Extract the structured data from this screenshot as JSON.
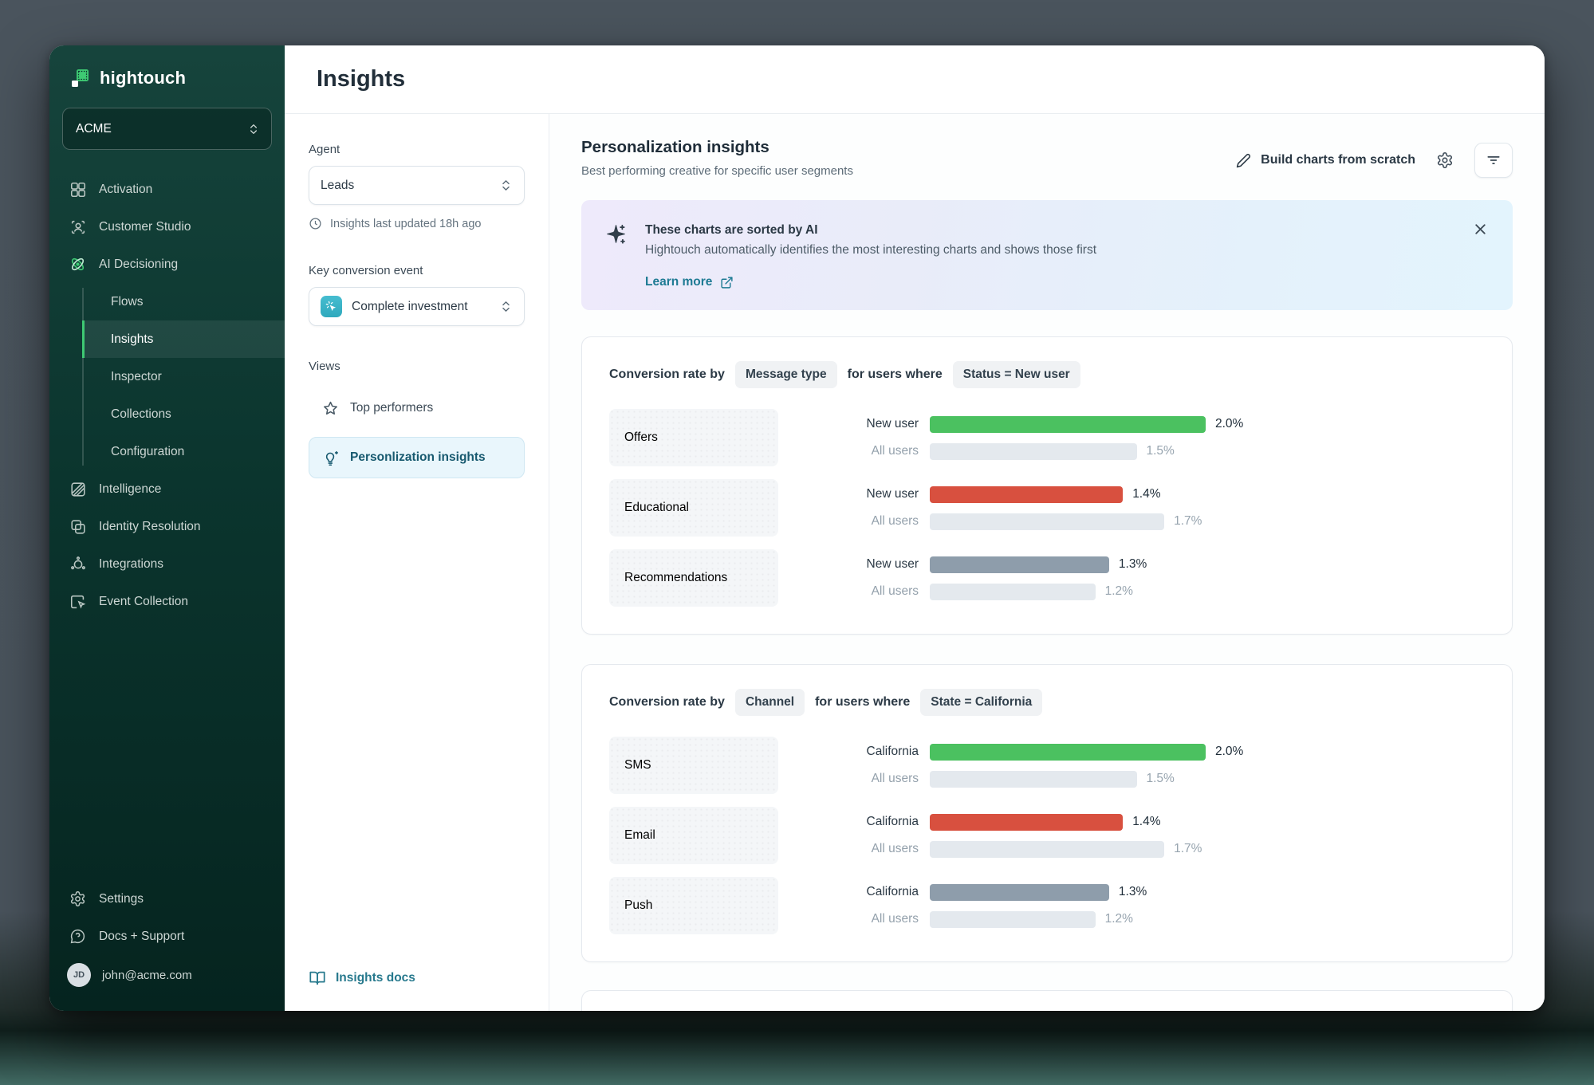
{
  "window": {
    "title": "Insights"
  },
  "sidebar": {
    "brand": "hightouch",
    "workspace": "ACME",
    "nav": [
      {
        "label": "Activation"
      },
      {
        "label": "Customer Studio"
      },
      {
        "label": "AI Decisioning"
      }
    ],
    "subnav": [
      {
        "label": "Flows"
      },
      {
        "label": "Insights"
      },
      {
        "label": "Inspector"
      },
      {
        "label": "Collections"
      },
      {
        "label": "Configuration"
      }
    ],
    "nav2": [
      {
        "label": "Intelligence"
      },
      {
        "label": "Identity Resolution"
      },
      {
        "label": "Integrations"
      },
      {
        "label": "Event Collection"
      }
    ],
    "footer": {
      "settings": "Settings",
      "docs": "Docs + Support",
      "email": "john@acme.com",
      "avatar_initials": "JD"
    }
  },
  "filters": {
    "agent_label": "Agent",
    "agent_value": "Leads",
    "last_updated": "Insights last updated 18h ago",
    "key_event_label": "Key conversion event",
    "key_event_value": "Complete investment",
    "views_label": "Views",
    "view_top": "Top performers",
    "view_personalization": "Personlization insights",
    "docs_link": "Insights docs"
  },
  "main": {
    "title": "Personalization insights",
    "subtitle": "Best performing creative for specific user segments",
    "build_button": "Build charts from scratch",
    "banner": {
      "title": "These charts are sorted by AI",
      "description": "Hightouch automatically identifies the most interesting charts and shows those first",
      "link": "Learn more"
    }
  },
  "chart_data": [
    {
      "type": "bar",
      "orientation": "horizontal",
      "title_prefix": "Conversion rate by",
      "dimension": "Message type",
      "title_middle": "for users where",
      "filter": "Status = New user",
      "x_max": 2.0,
      "value_unit": "%",
      "rows": [
        {
          "category": "Offers",
          "primary_label": "New user",
          "primary_value": 2.0,
          "primary_display": "2.0%",
          "primary_color": "#4bc160",
          "secondary_label": "All users",
          "secondary_value": 1.5,
          "secondary_display": "1.5%"
        },
        {
          "category": "Educational",
          "primary_label": "New user",
          "primary_value": 1.4,
          "primary_display": "1.4%",
          "primary_color": "#d8503f",
          "secondary_label": "All users",
          "secondary_value": 1.7,
          "secondary_display": "1.7%"
        },
        {
          "category": "Recommendations",
          "primary_label": "New user",
          "primary_value": 1.3,
          "primary_display": "1.3%",
          "primary_color": "#8e9dab",
          "secondary_label": "All users",
          "secondary_value": 1.2,
          "secondary_display": "1.2%"
        }
      ]
    },
    {
      "type": "bar",
      "orientation": "horizontal",
      "title_prefix": "Conversion rate by",
      "dimension": "Channel",
      "title_middle": "for users where",
      "filter": "State = California",
      "x_max": 2.0,
      "value_unit": "%",
      "rows": [
        {
          "category": "SMS",
          "primary_label": "California",
          "primary_value": 2.0,
          "primary_display": "2.0%",
          "primary_color": "#4bc160",
          "secondary_label": "All users",
          "secondary_value": 1.5,
          "secondary_display": "1.5%"
        },
        {
          "category": "Email",
          "primary_label": "California",
          "primary_value": 1.4,
          "primary_display": "1.4%",
          "primary_color": "#d8503f",
          "secondary_label": "All users",
          "secondary_value": 1.7,
          "secondary_display": "1.7%"
        },
        {
          "category": "Push",
          "primary_label": "California",
          "primary_value": 1.3,
          "primary_display": "1.3%",
          "primary_color": "#8e9dab",
          "secondary_label": "All users",
          "secondary_value": 1.2,
          "secondary_display": "1.2%"
        }
      ]
    }
  ],
  "colors": {
    "brand_green": "#3ec973",
    "sidebar_top": "#16443c",
    "sidebar_bottom": "#05241f",
    "teal_link": "#27798d",
    "bar_green": "#4bc160",
    "bar_red": "#d8503f",
    "bar_slate": "#8e9dab",
    "bar_muted": "#e4e9ee",
    "active_view_bg": "#e9f6fc"
  }
}
